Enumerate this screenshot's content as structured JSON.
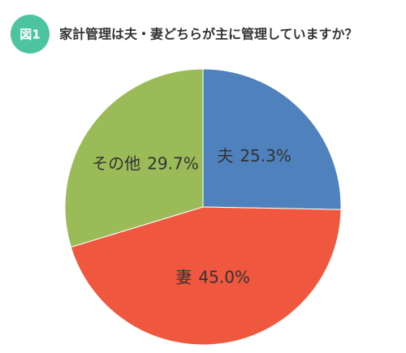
{
  "chart_data": {
    "type": "pie",
    "badge": "図1",
    "title": "家計管理は夫・妻どちらが主に管理していますか？",
    "categories": [
      "夫",
      "妻",
      "その他"
    ],
    "values": [
      25.3,
      45.0,
      29.7
    ],
    "value_labels": [
      "25.3%",
      "45.0%",
      "29.7%"
    ],
    "colors": [
      "#4f81bd",
      "#f0573f",
      "#9bbb59"
    ]
  }
}
